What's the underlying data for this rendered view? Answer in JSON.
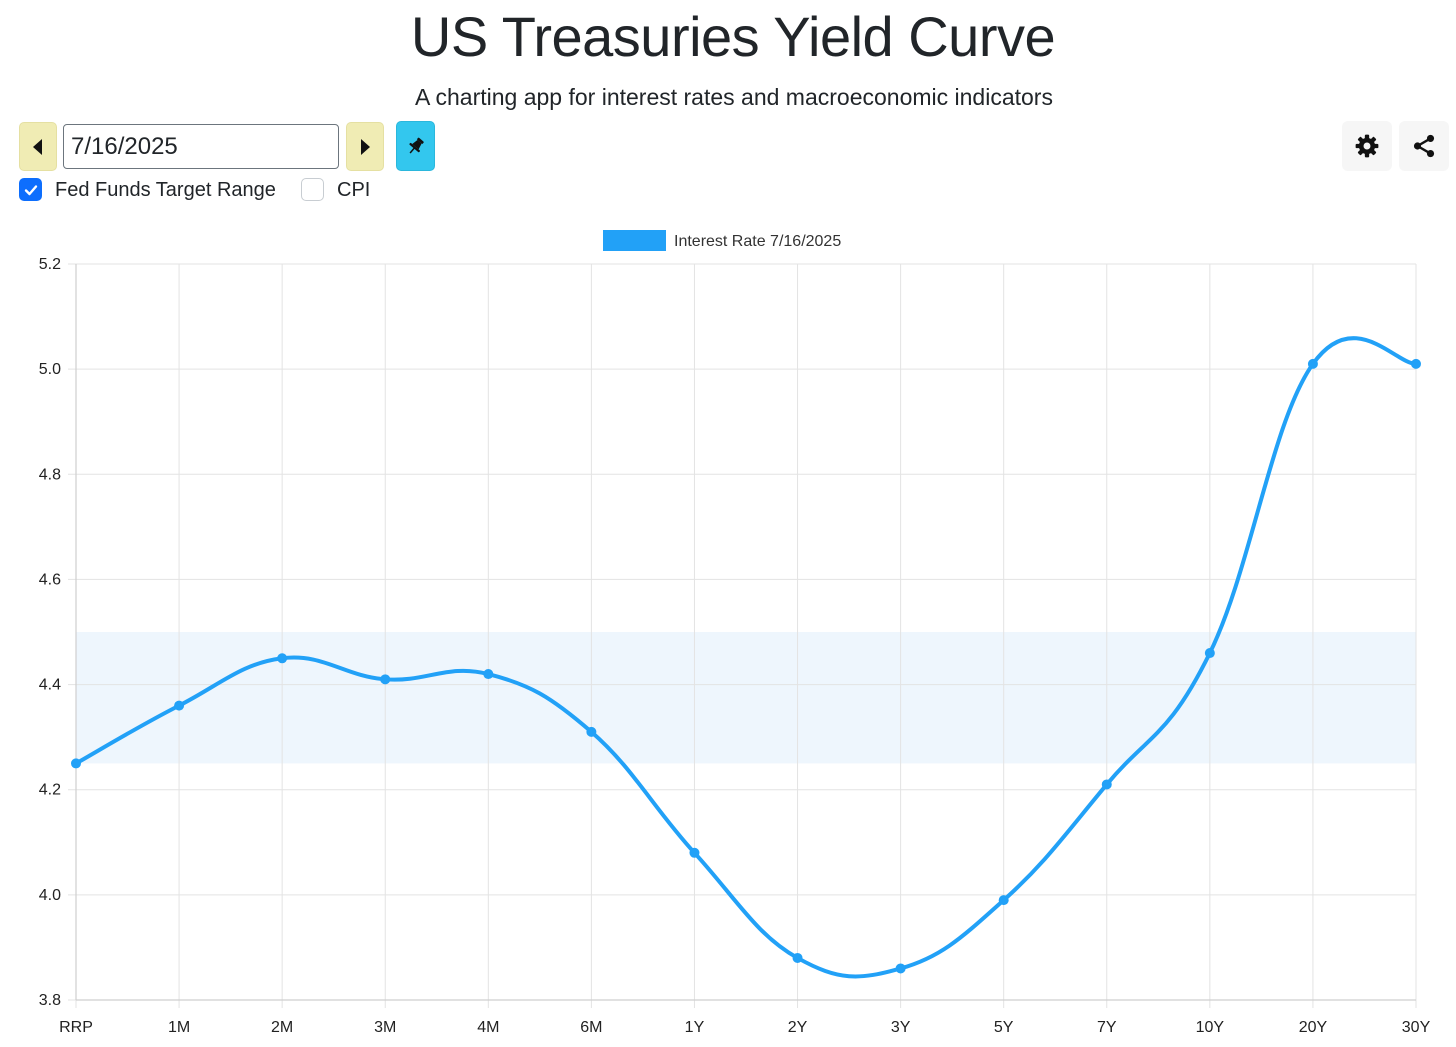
{
  "app": {
    "title": "US Treasuries Yield Curve",
    "subtitle": "A charting app for interest rates and macroeconomic indicators"
  },
  "toolbar": {
    "date_value": "7/16/2025",
    "prev_icon": "caret-left-icon",
    "next_icon": "caret-right-icon",
    "pin_icon": "pushpin-icon",
    "settings_icon": "gear-icon",
    "share_icon": "share-icon"
  },
  "options": {
    "fed_funds": {
      "label": "Fed Funds Target Range",
      "checked": true
    },
    "cpi": {
      "label": "CPI",
      "checked": false
    }
  },
  "colors": {
    "series": "#22a1f7",
    "band": "#eef6fd",
    "accent_check": "#0d6efd",
    "nav_button": "#f0ecb4",
    "pin_button": "#33c7ee"
  },
  "chart_data": {
    "type": "line",
    "title": "",
    "xlabel": "",
    "ylabel": "",
    "categories": [
      "RRP",
      "1M",
      "2M",
      "3M",
      "4M",
      "6M",
      "1Y",
      "2Y",
      "3Y",
      "5Y",
      "7Y",
      "10Y",
      "20Y",
      "30Y"
    ],
    "series": [
      {
        "name": "Interest Rate 7/16/2025",
        "values": [
          4.25,
          4.36,
          4.45,
          4.41,
          4.42,
          4.31,
          4.08,
          3.88,
          3.86,
          3.99,
          4.21,
          4.46,
          5.01,
          5.01
        ]
      }
    ],
    "fed_funds_target_range": [
      4.25,
      4.5
    ],
    "ylim": [
      3.8,
      5.2
    ],
    "yticks": [
      "3.8",
      "4.0",
      "4.2",
      "4.4",
      "4.6",
      "4.8",
      "5.0",
      "5.2"
    ],
    "grid": true,
    "legend_position": "top-center",
    "smooth": true
  }
}
